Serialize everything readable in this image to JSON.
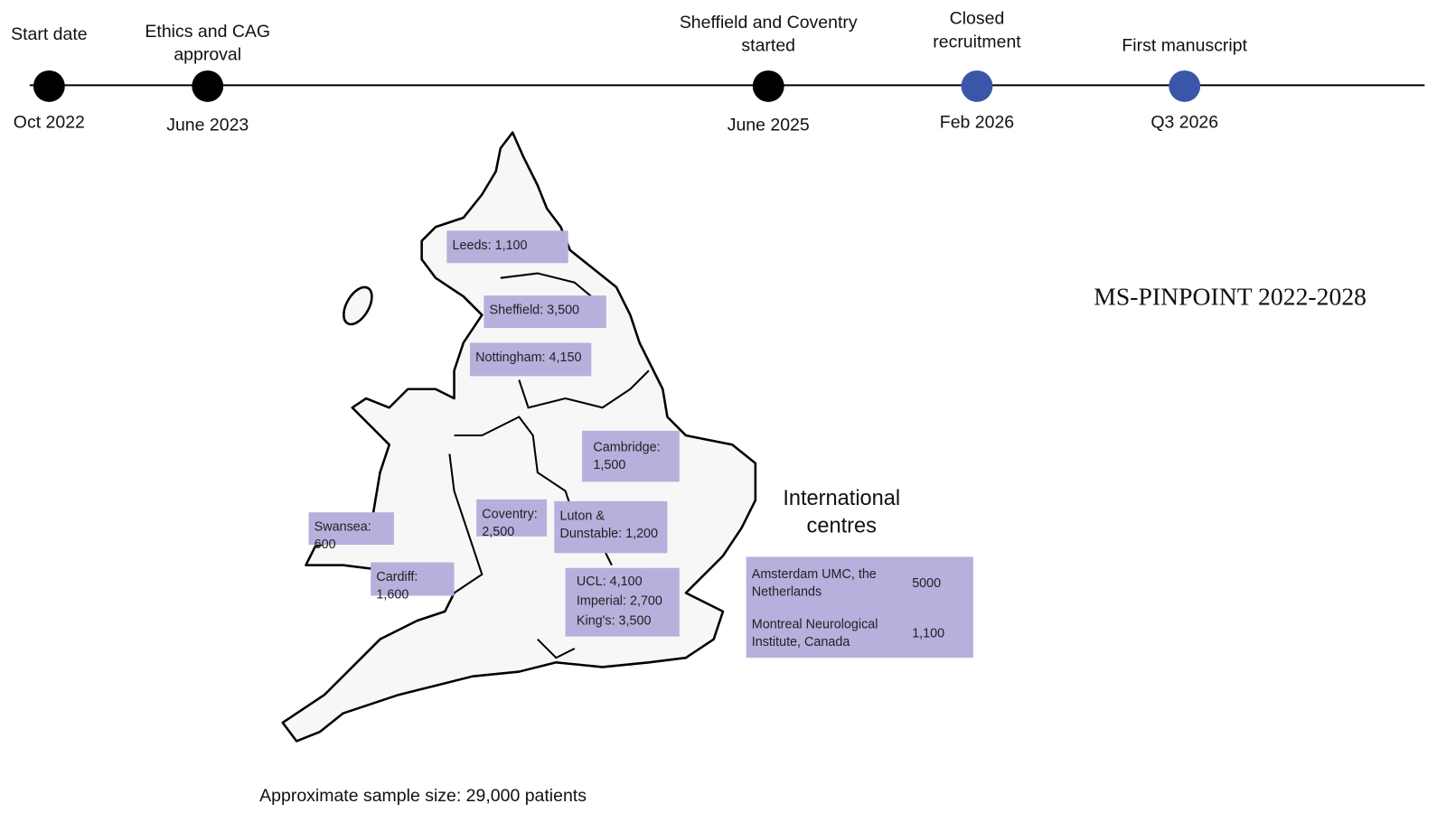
{
  "timeline": {
    "events": [
      {
        "label": "Start date",
        "date": "Oct 2022",
        "color": "#000000"
      },
      {
        "label": "Ethics and CAG approval",
        "date": "June 2023",
        "color": "#000000"
      },
      {
        "label": "Sheffield and Coventry started",
        "date": "June 2025",
        "color": "#000000"
      },
      {
        "label": "Closed recruitment",
        "date": "Feb 2026",
        "color": "#3a56a8"
      },
      {
        "label": "First manuscript",
        "date": "Q3 2026",
        "color": "#3a56a8"
      }
    ]
  },
  "title": "MS-PINPOINT 2022-2028",
  "map": {
    "sites": [
      "Leeds: 1,100",
      "Sheffield: 3,500",
      "Nottingham: 4,150",
      "Cambridge: 1,500",
      "Swansea: 600",
      "Coventry: 2,500",
      "Luton & Dunstable: 1,200",
      "Cardiff: 1,600"
    ],
    "london": [
      "UCL: 4,100",
      "Imperial: 2,700",
      "King's: 3,500"
    ]
  },
  "international": {
    "heading": "International centres",
    "centres": [
      {
        "name": "Amsterdam UMC, the Netherlands",
        "value": "5000"
      },
      {
        "name": "Montreal Neurological Institute, Canada",
        "value": "1,100"
      }
    ]
  },
  "footer": "Approximate sample size: 29,000 patients"
}
